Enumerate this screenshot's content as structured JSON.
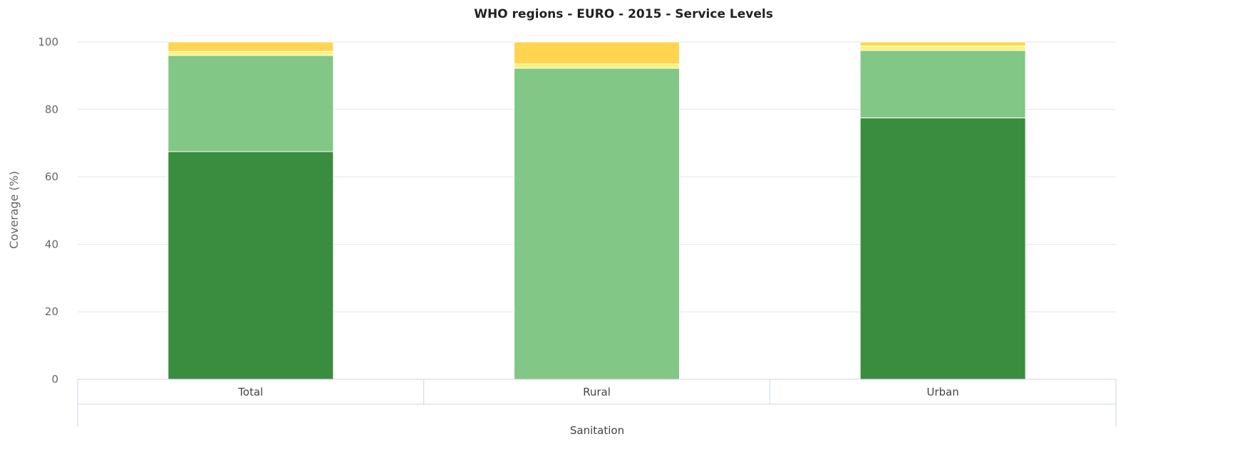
{
  "chart_data": {
    "type": "bar",
    "stacked": true,
    "title": "WHO regions - EURO - 2015 - Service Levels",
    "ylabel": "Coverage (%)",
    "ylim": [
      0,
      100
    ],
    "yticks": [
      0,
      20,
      40,
      60,
      80,
      100
    ],
    "group_label": "Sanitation",
    "categories": [
      "Total",
      "Rural",
      "Urban"
    ],
    "grid": true,
    "legend": "none",
    "series": [
      {
        "color": "#3a8d3e",
        "values": [
          67.5,
          0,
          77.5
        ]
      },
      {
        "color": "#82c785",
        "values": [
          28.5,
          92.2,
          20
        ]
      },
      {
        "color": "#fff176",
        "values": [
          1.2,
          1.3,
          1.3
        ]
      },
      {
        "color": "#ffd54f",
        "values": [
          2.8,
          6.5,
          1.2
        ]
      }
    ]
  }
}
